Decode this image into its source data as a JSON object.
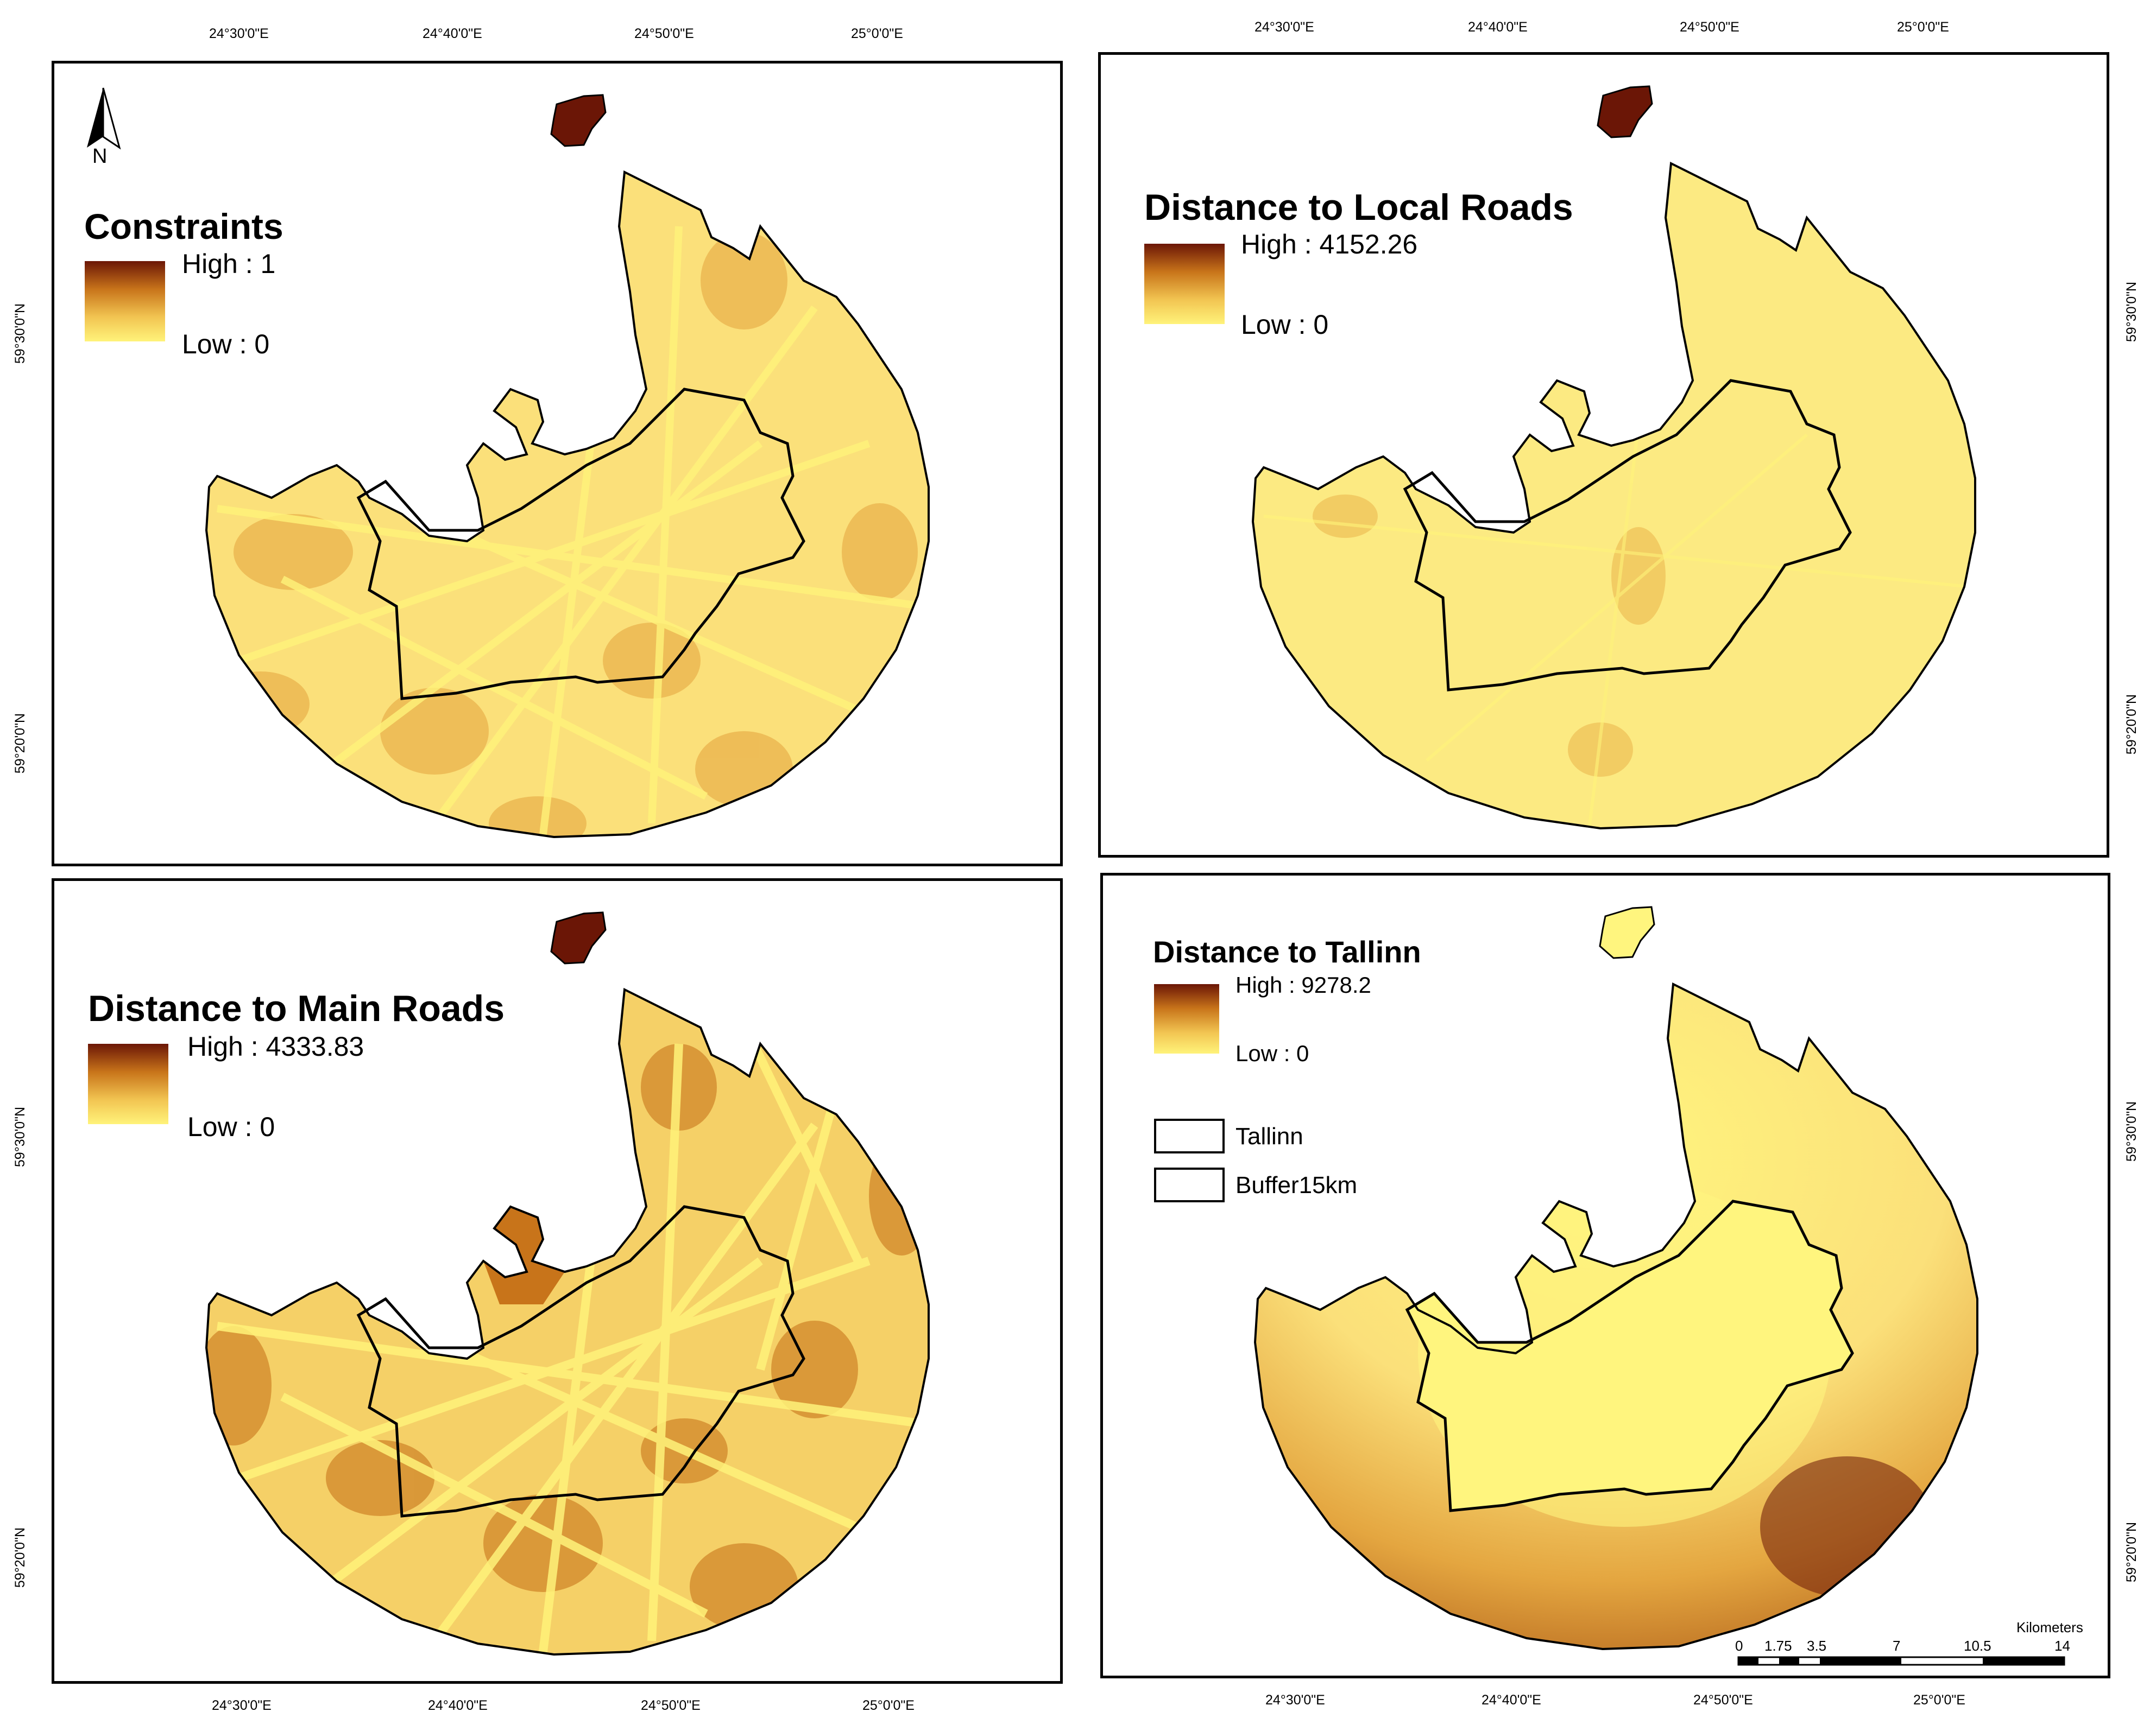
{
  "coords": {
    "top_left": [
      "24°30'0\"E",
      "24°40'0\"E",
      "24°50'0\"E",
      "25°0'0\"E"
    ],
    "top_right": [
      "24°30'0\"E",
      "24°40'0\"E",
      "24°50'0\"E",
      "25°0'0\"E"
    ],
    "bottom_left": [
      "24°30'0\"E",
      "24°40'0\"E",
      "24°50'0\"E",
      "25°0'0\"E"
    ],
    "bottom_right": [
      "24°30'0\"E",
      "24°40'0\"E",
      "24°50'0\"E",
      "25°0'0\"E"
    ],
    "left_lat": [
      "59°30'0\"N",
      "59°20'0\"N",
      "59°30'0\"N",
      "59°20'0\"N"
    ],
    "right_lat": [
      "59°30'0\"N",
      "59°20'0\"N",
      "59°30'0\"N",
      "59°20'0\"N"
    ]
  },
  "north_arrow_label": "N",
  "panels": {
    "constraints": {
      "title": "Constraints",
      "high": "High : 1",
      "low": "Low : 0"
    },
    "local_roads": {
      "title": "Distance to Local Roads",
      "high": "High : 4152.26",
      "low": "Low : 0"
    },
    "main_roads": {
      "title": "Distance to Main Roads",
      "high": "High : 4333.83",
      "low": "Low : 0"
    },
    "tallinn": {
      "title": "Distance to Tallinn",
      "high": "High : 9278.2",
      "low": "Low : 0",
      "legend_items": [
        "Tallinn",
        "Buffer15km"
      ]
    }
  },
  "scale_bar": {
    "unit": "Kilometers",
    "ticks": [
      "0",
      "1.75",
      "3.5",
      "7",
      "10.5",
      "14"
    ]
  },
  "colors": {
    "high": "#6b1606",
    "mid": "#c8741a",
    "low": "#fff37a",
    "base": "#fbe27a"
  }
}
